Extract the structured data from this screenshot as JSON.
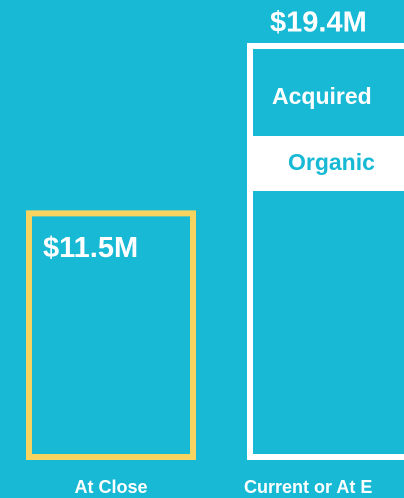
{
  "chart_data": {
    "type": "bar",
    "categories": [
      "At Close",
      "Current or At E"
    ],
    "values": [
      11.5,
      19.4
    ],
    "value_labels": [
      "$11.5M",
      "$19.4M"
    ],
    "colors": [
      "#f7d35f",
      "#ffffff"
    ],
    "segments": [
      "Acquired",
      "Organic"
    ]
  }
}
